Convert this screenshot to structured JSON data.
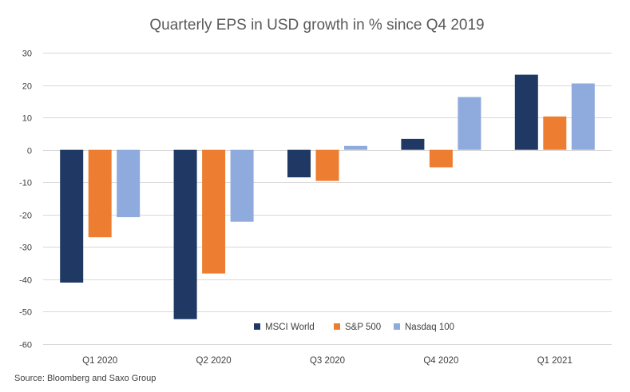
{
  "chart_data": {
    "type": "bar",
    "title": "Quarterly EPS in USD growth in % since Q4 2019",
    "source": "Source: Bloomberg and Saxo Group",
    "categories": [
      "Q1 2020",
      "Q2 2020",
      "Q3 2020",
      "Q4 2020",
      "Q1 2021"
    ],
    "series": [
      {
        "name": "MSCI World",
        "color": "#1f3864",
        "values": [
          -41,
          -52.3,
          -8.5,
          3.4,
          23.2
        ]
      },
      {
        "name": "S&P 500",
        "color": "#ed7d31",
        "values": [
          -27,
          -38.2,
          -9.6,
          -5.4,
          10.3
        ]
      },
      {
        "name": "Nasdaq 100",
        "color": "#8faadc",
        "values": [
          -20.8,
          -22.2,
          1.2,
          16.3,
          20.5
        ]
      }
    ],
    "ylim": [
      -60,
      30
    ],
    "yticks": [
      30,
      20,
      10,
      0,
      -10,
      -20,
      -30,
      -40,
      -50,
      -60
    ],
    "grid": true,
    "legend_position": "bottom-right-inside"
  }
}
